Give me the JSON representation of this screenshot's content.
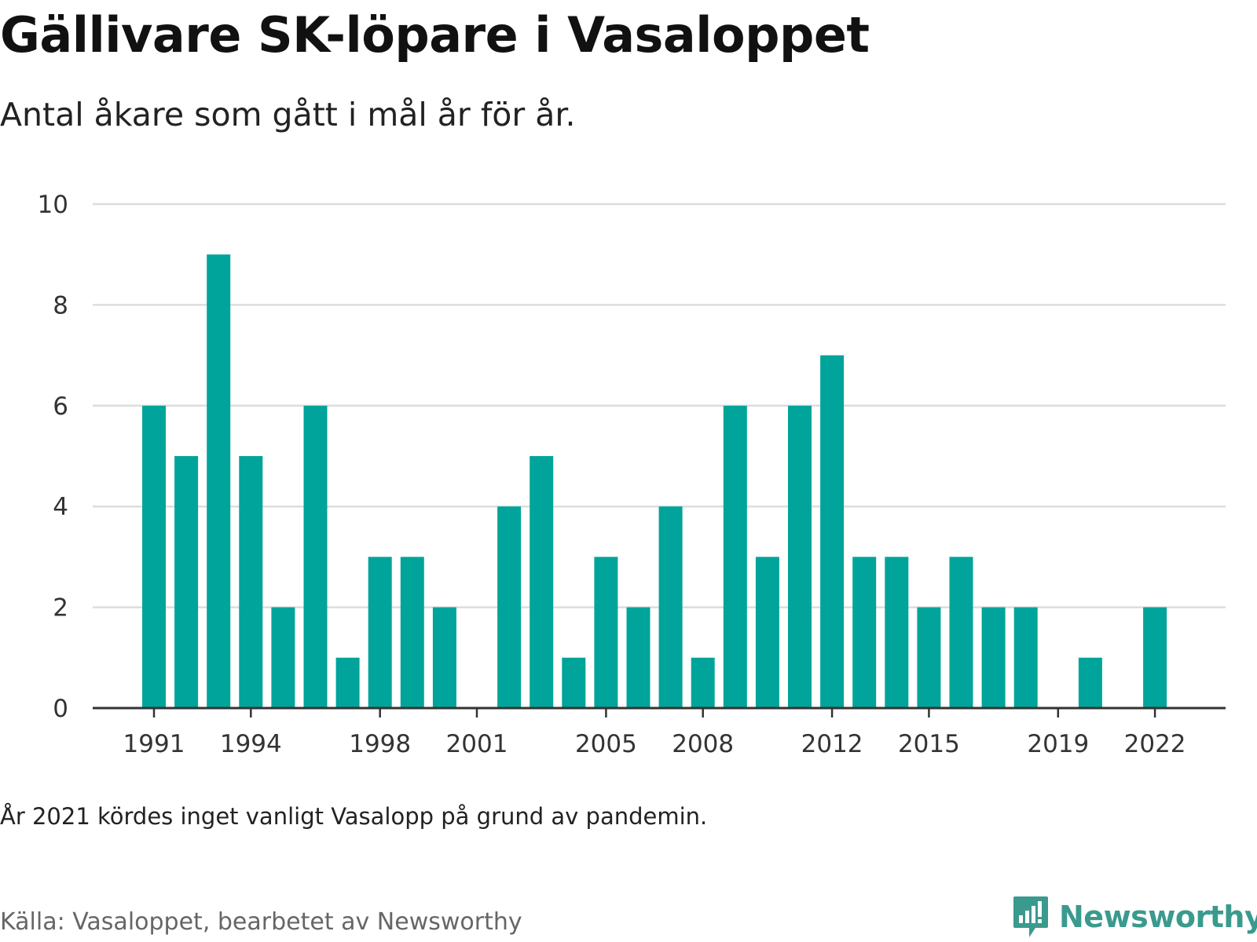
{
  "title": "Gällivare SK-löpare i Vasaloppet",
  "subtitle": "Antal åkare som gått i mål år för år.",
  "note": "År 2021 kördes inget vanligt Vasalopp på grund av pandemin.",
  "source": "Källa: Vasaloppet, bearbetet av Newsworthy",
  "logo": {
    "text": "Newsworthy",
    "icon": "newsworthy-logo-icon",
    "color": "#3a9a8e"
  },
  "chart_data": {
    "type": "bar",
    "title": "Gällivare SK-löpare i Vasaloppet",
    "xlabel": "",
    "ylabel": "",
    "categories": [
      1991,
      1992,
      1993,
      1994,
      1995,
      1996,
      1997,
      1998,
      1999,
      2000,
      2001,
      2002,
      2003,
      2004,
      2005,
      2006,
      2007,
      2008,
      2009,
      2010,
      2011,
      2012,
      2013,
      2014,
      2015,
      2016,
      2017,
      2018,
      2019,
      2020,
      2021,
      2022
    ],
    "values": [
      6,
      5,
      9,
      5,
      2,
      6,
      1,
      3,
      3,
      2,
      0,
      4,
      5,
      1,
      3,
      2,
      4,
      1,
      6,
      3,
      6,
      7,
      3,
      3,
      2,
      3,
      2,
      2,
      0,
      1,
      0,
      2
    ],
    "x_tick_labels": [
      "1991",
      "1994",
      "1998",
      "2001",
      "2005",
      "2008",
      "2012",
      "2015",
      "2019",
      "2022"
    ],
    "y_ticks": [
      "0",
      "2",
      "4",
      "6",
      "8",
      "10"
    ],
    "ylim": [
      0,
      10
    ],
    "grid": true,
    "bar_color": "#00a49a",
    "gridline_color": "#dddddd",
    "axis_color": "#333333"
  }
}
